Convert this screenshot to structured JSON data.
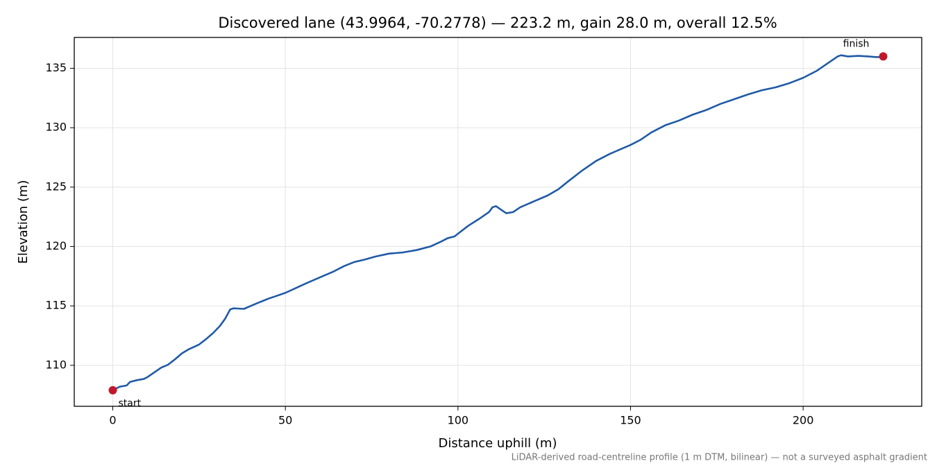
{
  "chart_data": {
    "type": "line",
    "title": "Discovered lane (43.9964, -70.2778) — 223.2 m, gain 28.0 m, overall 12.5%",
    "xlabel": "Distance uphill (m)",
    "ylabel": "Elevation (m)",
    "note": "LiDAR-derived road-centreline profile (1 m DTM, bilinear) — not a surveyed asphalt gradient",
    "xlim": [
      -11.16,
      234.36
    ],
    "ylim": [
      106.55,
      137.6
    ],
    "xticks": [
      0,
      50,
      100,
      150,
      200
    ],
    "yticks": [
      110,
      115,
      120,
      125,
      130,
      135
    ],
    "grid": true,
    "series": [
      {
        "color": "#1f5aa6",
        "x": [
          0,
          2,
          4,
          5,
          7,
          9,
          10,
          12,
          14,
          16,
          18,
          20,
          22,
          25,
          27,
          29,
          31,
          32.5,
          34,
          35,
          38,
          40,
          42,
          45,
          48,
          50,
          53,
          56,
          60,
          64,
          67,
          70,
          73,
          76,
          80,
          84,
          88,
          92,
          95,
          97,
          99,
          101,
          103,
          106,
          109,
          110,
          111,
          113,
          114,
          116,
          118,
          122,
          126,
          129,
          132,
          136,
          140,
          144,
          148,
          150,
          153,
          156,
          160,
          164,
          168,
          172,
          176,
          180,
          184,
          188,
          192,
          196,
          200,
          204,
          207,
          210,
          211,
          213,
          216,
          219,
          221,
          223.2
        ],
        "values": [
          107.9,
          108.2,
          108.3,
          108.6,
          108.75,
          108.85,
          109.0,
          109.4,
          109.8,
          110.05,
          110.5,
          111.0,
          111.35,
          111.75,
          112.2,
          112.7,
          113.3,
          113.9,
          114.7,
          114.8,
          114.75,
          115.0,
          115.25,
          115.6,
          115.9,
          116.1,
          116.5,
          116.9,
          117.4,
          117.9,
          118.35,
          118.7,
          118.9,
          119.15,
          119.4,
          119.5,
          119.7,
          120.0,
          120.4,
          120.7,
          120.85,
          121.3,
          121.75,
          122.3,
          122.9,
          123.3,
          123.4,
          123.0,
          122.8,
          122.9,
          123.3,
          123.8,
          124.3,
          124.8,
          125.5,
          126.4,
          127.2,
          127.8,
          128.3,
          128.55,
          129.0,
          129.6,
          130.2,
          130.6,
          131.1,
          131.5,
          132.0,
          132.4,
          132.8,
          133.15,
          133.4,
          133.75,
          134.2,
          134.8,
          135.4,
          136.0,
          136.1,
          136.0,
          136.05,
          136.0,
          135.95,
          135.95
        ]
      }
    ],
    "points": [
      {
        "label": "start",
        "x": 0,
        "y": 107.9,
        "color": "#c0182a"
      },
      {
        "label": "finish",
        "x": 223.2,
        "y": 136.0,
        "color": "#c0182a"
      }
    ]
  }
}
